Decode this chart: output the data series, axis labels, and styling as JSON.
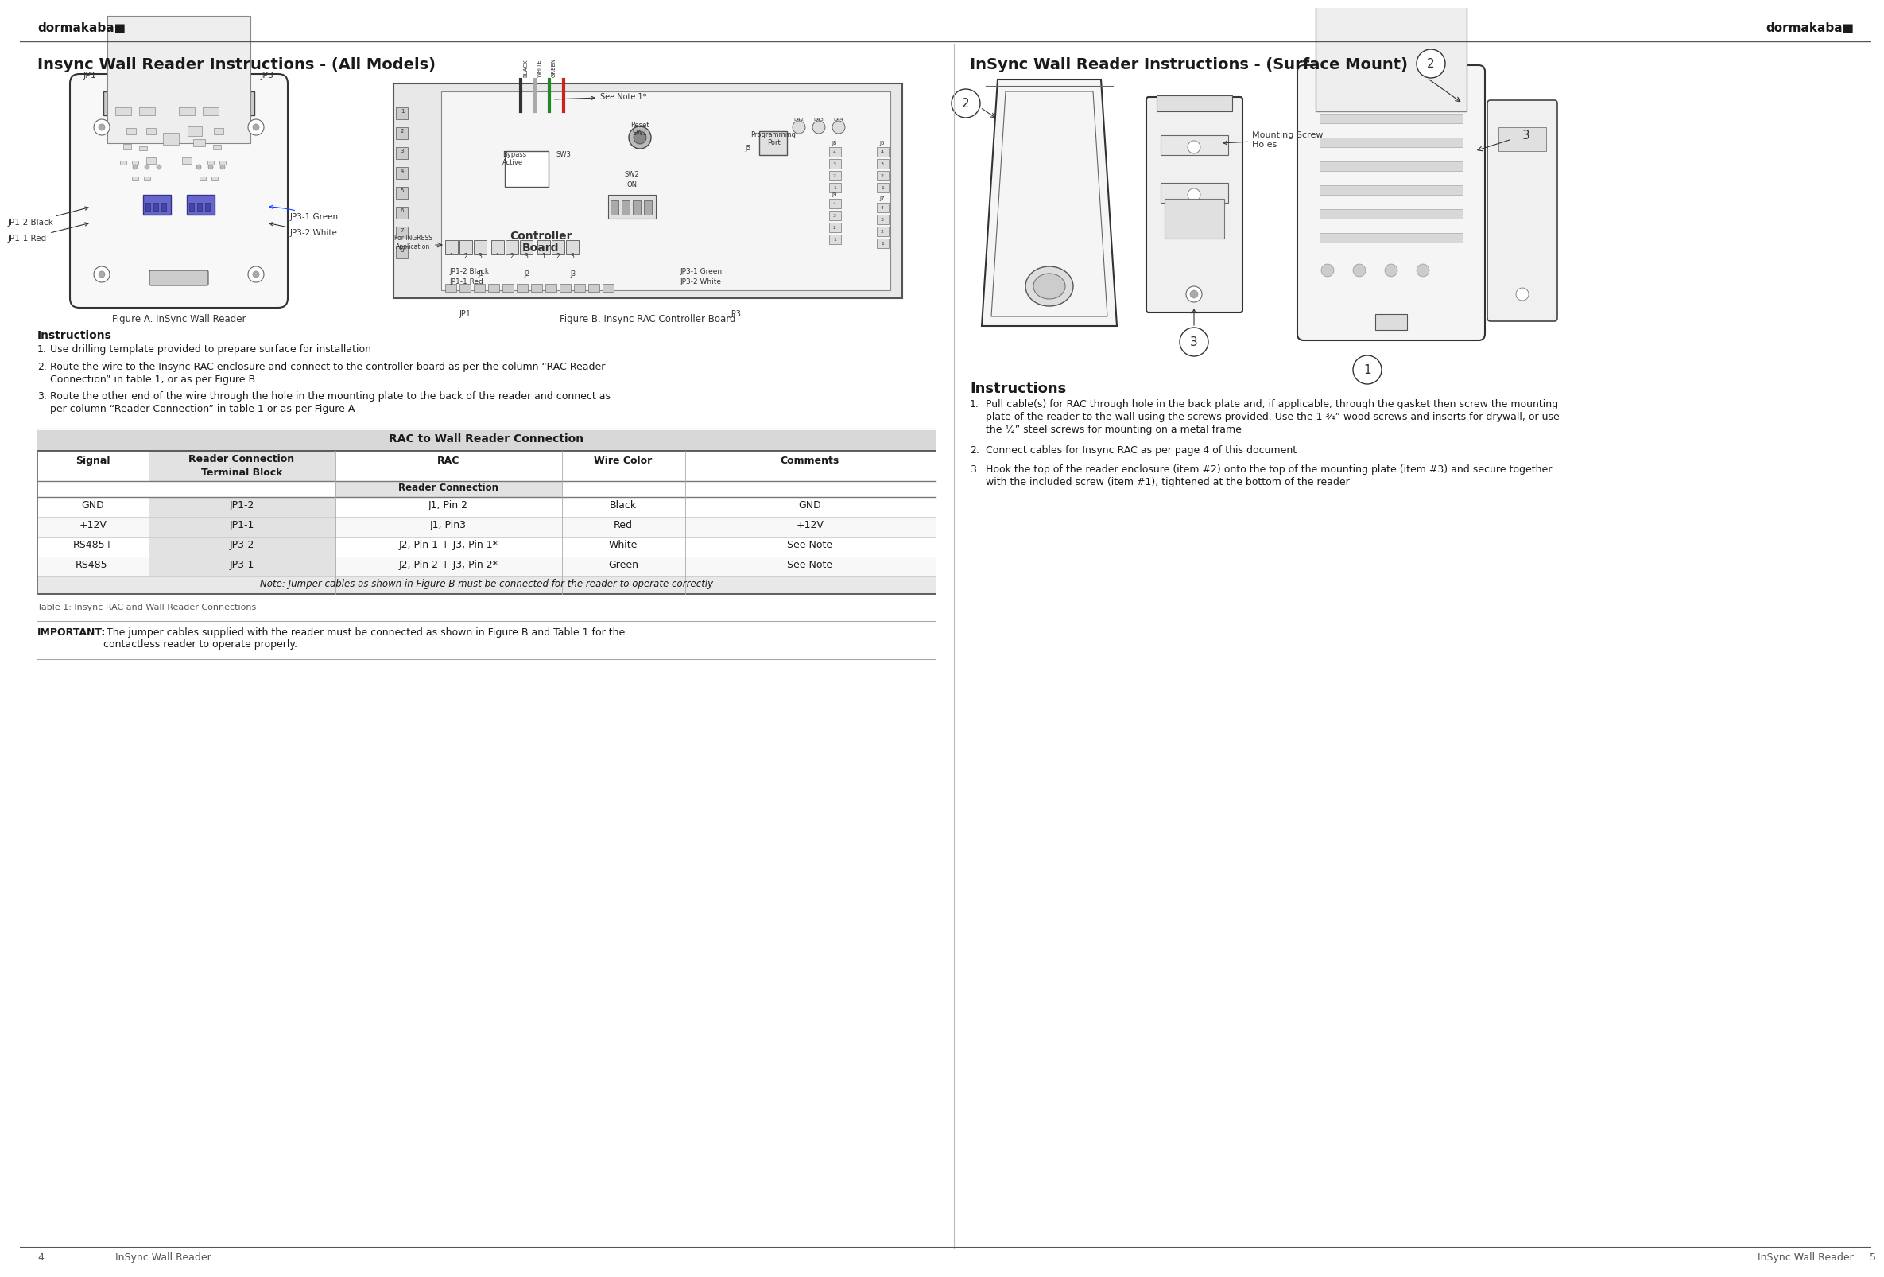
{
  "bg_color": "#ffffff",
  "brand": "dormakaba■",
  "page_left": "4",
  "page_right": "5",
  "footer_text": "InSync Wall Reader",
  "left_title": "Insync Wall Reader Instructions - (All Models)",
  "right_title": "InSync Wall Reader Instructions - (Surface Mount)",
  "left_section": {
    "figure_a_caption": "Figure A. InSync Wall Reader",
    "figure_b_caption": "Figure B. Insync RAC Controller Board",
    "labels": {
      "JP1": "JP1",
      "JP3": "JP3",
      "JP1_2_Black": "JP1-2 Black",
      "JP1_1_Red": "JP1-1 Red",
      "JP3_1_Green": "JP3-1 Green",
      "JP3_2_White": "JP3-2 White",
      "Controller_Board": "Controller\nBoard",
      "Bypass_Active": "Bypass\nActive",
      "SW3": "SW3",
      "ON": "ON",
      "Reset_SW1": "Reset\nSW1",
      "Programming_Port": "Programming\nPort",
      "JP1_lbl": "JP1",
      "JP3_lbl": "JP3",
      "See_Note": "See Note 1*",
      "For_INGRESS": "For INGRESS\nApplication",
      "SW2": "SW2"
    },
    "instructions_title": "Instructions",
    "instructions": [
      "Use drilling template provided to prepare surface for installation",
      "Route the wire to the Insync RAC enclosure and connect to the controller board as per the column “RAC Reader\n   Connection” in table 1, or as per Figure B",
      "Route the other end of the wire through the hole in the mounting plate to the back of the reader and connect as\n   per column “Reader Connection” in table 1 or as per Figure A"
    ],
    "table_title": "RAC to Wall Reader Connection",
    "table_rows": [
      [
        "GND",
        "JP1-2",
        "J1, Pin 2",
        "Black",
        "GND"
      ],
      [
        "+12V",
        "JP1-1",
        "J1, Pin3",
        "Red",
        "+12V"
      ],
      [
        "RS485+",
        "JP3-2",
        "J2, Pin 1 + J3, Pin 1*",
        "White",
        "See Note"
      ],
      [
        "RS485-",
        "JP3-1",
        "J2, Pin 2 + J3, Pin 2*",
        "Green",
        "See Note"
      ]
    ],
    "note_text": "Note: Jumper cables as shown in Figure B must be connected for the reader to operate correctly",
    "table_caption": "Table 1: Insync RAC and Wall Reader Connections",
    "important_bold": "IMPORTANT:",
    "important_rest": " The jumper cables supplied with the reader must be connected as shown in Figure B and Table 1 for the\ncontactless reader to operate properly."
  },
  "right_section": {
    "instructions_title": "Instructions",
    "mounting_label": "Mounting Screw\nHo es",
    "instructions": [
      "Pull cable(s) for RAC through hole in the back plate and, if applicable, through the gasket then screw the mounting\n   plate of the reader to the wall using the screws provided. Use the 1 ¾” wood screws and inserts for drywall, or use\n   the ½” steel screws for mounting on a metal frame",
      "Connect cables for Insync RAC as per page 4 of this document",
      "Hook the top of the reader enclosure (item #2) onto the top of the mounting plate (item #3) and secure together\n   with the included screw (item #1), tightened at the bottom of the reader"
    ]
  }
}
